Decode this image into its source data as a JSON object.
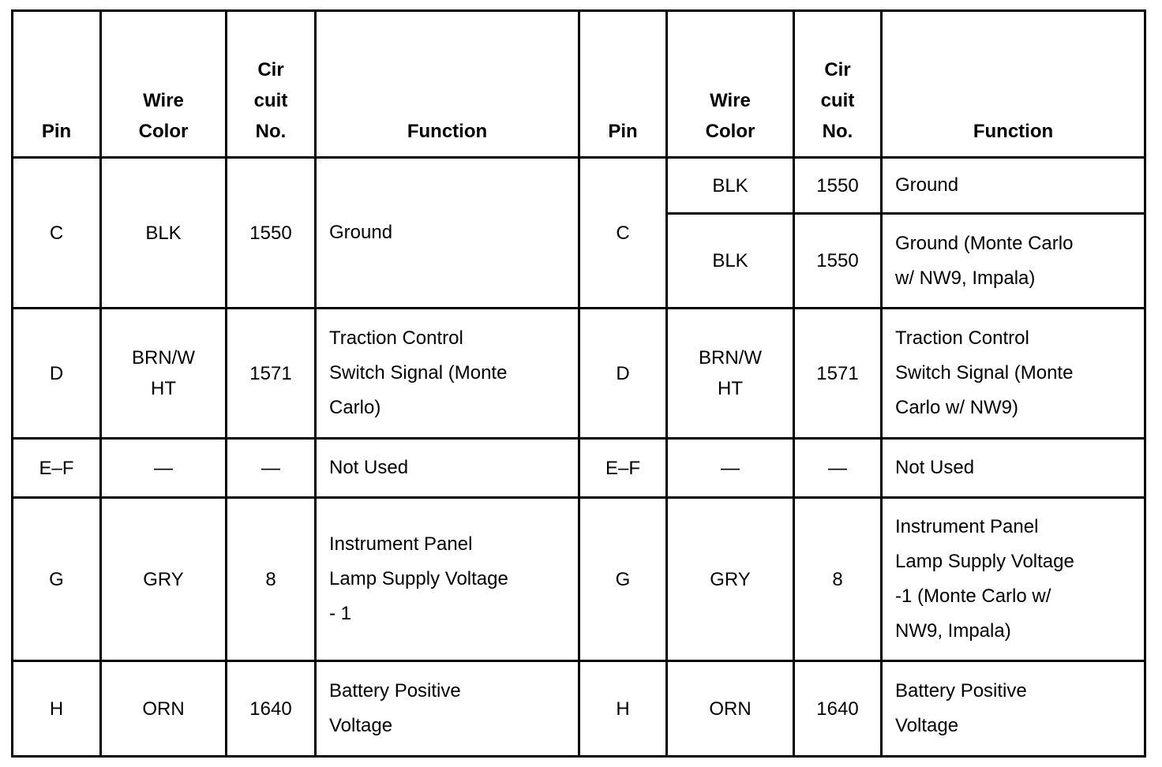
{
  "headers": {
    "pin": "Pin",
    "wire_color": [
      "Wire",
      "Color"
    ],
    "circuit": [
      "Cir",
      "cuit",
      "No."
    ],
    "function": "Function"
  },
  "left": {
    "C": {
      "pin": "C",
      "wire": "BLK",
      "circuit": "1550",
      "function": "Ground"
    },
    "D": {
      "pin": "D",
      "wire": [
        "BRN/W",
        "HT"
      ],
      "circuit": "1571",
      "function": [
        "Traction Control",
        "Switch Signal (Monte",
        "Carlo)"
      ]
    },
    "EF": {
      "pin": "E–F",
      "wire": "—",
      "circuit": "—",
      "function": "Not Used"
    },
    "G": {
      "pin": "G",
      "wire": "GRY",
      "circuit": "8",
      "function": [
        "Instrument Panel",
        "Lamp Supply Voltage",
        "- 1"
      ]
    },
    "H": {
      "pin": "H",
      "wire": "ORN",
      "circuit": "1640",
      "function": [
        "Battery Positive",
        "Voltage"
      ]
    }
  },
  "right": {
    "C": {
      "pin": "C",
      "a": {
        "wire": "BLK",
        "circuit": "1550",
        "function": "Ground"
      },
      "b": {
        "wire": "BLK",
        "circuit": "1550",
        "function": [
          "Ground (Monte Carlo",
          "w/ NW9, Impala)"
        ]
      }
    },
    "D": {
      "pin": "D",
      "wire": [
        "BRN/W",
        "HT"
      ],
      "circuit": "1571",
      "function": [
        "Traction Control",
        "Switch Signal (Monte",
        "Carlo w/ NW9)"
      ]
    },
    "EF": {
      "pin": "E–F",
      "wire": "—",
      "circuit": "—",
      "function": "Not Used"
    },
    "G": {
      "pin": "G",
      "wire": "GRY",
      "circuit": "8",
      "function": [
        "Instrument Panel",
        "Lamp Supply Voltage",
        "-1 (Monte Carlo w/",
        "NW9, Impala)"
      ]
    },
    "H": {
      "pin": "H",
      "wire": "ORN",
      "circuit": "1640",
      "function": [
        "Battery Positive",
        "Voltage"
      ]
    }
  }
}
